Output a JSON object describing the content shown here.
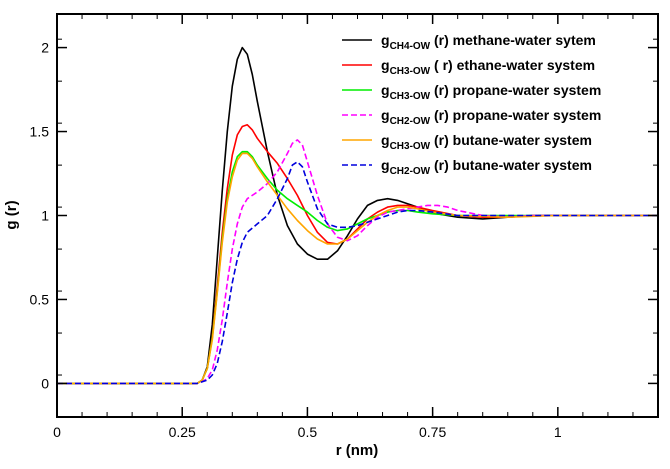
{
  "chart_data": {
    "type": "line",
    "xlabel": "r (nm)",
    "ylabel": "g (r)",
    "xlim": [
      0,
      1.2
    ],
    "ylim": [
      -0.2,
      2.2
    ],
    "x_ticks": [
      {
        "value": 0,
        "label": "0"
      },
      {
        "value": 0.25,
        "label": "0.25"
      },
      {
        "value": 0.5,
        "label": "0.5"
      },
      {
        "value": 0.75,
        "label": "0.75"
      },
      {
        "value": 1,
        "label": "1"
      }
    ],
    "y_ticks": [
      {
        "value": 0,
        "label": "0"
      },
      {
        "value": 0.5,
        "label": "0.5"
      },
      {
        "value": 1,
        "label": "1"
      },
      {
        "value": 1.5,
        "label": "1.5"
      },
      {
        "value": 2,
        "label": "2"
      }
    ],
    "x_minor_step": 0.05,
    "y_minor_step": 0.25,
    "grid": false,
    "legend_position": "top-right",
    "series": [
      {
        "name_main": "g",
        "name_sub": "CH4-OW",
        "name_rest": " (r)  methane-water sytem",
        "color": "#000000",
        "dash": "solid",
        "points": [
          [
            0,
            0
          ],
          [
            0.28,
            0
          ],
          [
            0.29,
            0.02
          ],
          [
            0.3,
            0.1
          ],
          [
            0.31,
            0.35
          ],
          [
            0.32,
            0.75
          ],
          [
            0.33,
            1.15
          ],
          [
            0.34,
            1.5
          ],
          [
            0.35,
            1.77
          ],
          [
            0.36,
            1.93
          ],
          [
            0.37,
            2.0
          ],
          [
            0.38,
            1.96
          ],
          [
            0.39,
            1.84
          ],
          [
            0.4,
            1.68
          ],
          [
            0.42,
            1.38
          ],
          [
            0.44,
            1.12
          ],
          [
            0.46,
            0.94
          ],
          [
            0.48,
            0.83
          ],
          [
            0.5,
            0.77
          ],
          [
            0.52,
            0.74
          ],
          [
            0.54,
            0.74
          ],
          [
            0.56,
            0.79
          ],
          [
            0.58,
            0.88
          ],
          [
            0.6,
            0.98
          ],
          [
            0.62,
            1.06
          ],
          [
            0.64,
            1.09
          ],
          [
            0.66,
            1.1
          ],
          [
            0.68,
            1.09
          ],
          [
            0.7,
            1.07
          ],
          [
            0.72,
            1.05
          ],
          [
            0.74,
            1.03
          ],
          [
            0.76,
            1.01
          ],
          [
            0.8,
            0.99
          ],
          [
            0.85,
            0.98
          ],
          [
            0.9,
            0.99
          ],
          [
            0.95,
            1.0
          ],
          [
            1.0,
            1.0
          ],
          [
            1.1,
            1.0
          ],
          [
            1.2,
            1.0
          ]
        ]
      },
      {
        "name_main": "g",
        "name_sub": "CH3-OW",
        "name_rest": " ( r) ethane-water system",
        "color": "#ff0000",
        "dash": "solid",
        "points": [
          [
            0,
            0
          ],
          [
            0.28,
            0
          ],
          [
            0.29,
            0.02
          ],
          [
            0.3,
            0.09
          ],
          [
            0.31,
            0.28
          ],
          [
            0.32,
            0.58
          ],
          [
            0.33,
            0.9
          ],
          [
            0.34,
            1.16
          ],
          [
            0.35,
            1.36
          ],
          [
            0.36,
            1.48
          ],
          [
            0.37,
            1.53
          ],
          [
            0.38,
            1.54
          ],
          [
            0.39,
            1.51
          ],
          [
            0.4,
            1.46
          ],
          [
            0.42,
            1.38
          ],
          [
            0.44,
            1.31
          ],
          [
            0.46,
            1.22
          ],
          [
            0.48,
            1.12
          ],
          [
            0.5,
            1.0
          ],
          [
            0.52,
            0.9
          ],
          [
            0.54,
            0.84
          ],
          [
            0.56,
            0.83
          ],
          [
            0.58,
            0.86
          ],
          [
            0.6,
            0.92
          ],
          [
            0.62,
            0.98
          ],
          [
            0.64,
            1.02
          ],
          [
            0.66,
            1.05
          ],
          [
            0.68,
            1.06
          ],
          [
            0.7,
            1.06
          ],
          [
            0.72,
            1.05
          ],
          [
            0.75,
            1.03
          ],
          [
            0.8,
            1.0
          ],
          [
            0.85,
            0.99
          ],
          [
            0.9,
            0.99
          ],
          [
            0.95,
            1.0
          ],
          [
            1.0,
            1.0
          ],
          [
            1.1,
            1.0
          ],
          [
            1.2,
            1.0
          ]
        ]
      },
      {
        "name_main": "g",
        "name_sub": "CH3-OW",
        "name_rest": " (r) propane-water system",
        "color": "#00ee00",
        "dash": "solid",
        "points": [
          [
            0,
            0
          ],
          [
            0.28,
            0
          ],
          [
            0.29,
            0.02
          ],
          [
            0.3,
            0.09
          ],
          [
            0.31,
            0.27
          ],
          [
            0.32,
            0.55
          ],
          [
            0.33,
            0.86
          ],
          [
            0.34,
            1.1
          ],
          [
            0.35,
            1.26
          ],
          [
            0.36,
            1.35
          ],
          [
            0.37,
            1.38
          ],
          [
            0.38,
            1.38
          ],
          [
            0.39,
            1.35
          ],
          [
            0.4,
            1.3
          ],
          [
            0.42,
            1.22
          ],
          [
            0.44,
            1.15
          ],
          [
            0.46,
            1.1
          ],
          [
            0.48,
            1.06
          ],
          [
            0.5,
            1.02
          ],
          [
            0.52,
            0.97
          ],
          [
            0.54,
            0.93
          ],
          [
            0.56,
            0.91
          ],
          [
            0.58,
            0.92
          ],
          [
            0.6,
            0.95
          ],
          [
            0.62,
            0.98
          ],
          [
            0.64,
            1.0
          ],
          [
            0.66,
            1.02
          ],
          [
            0.68,
            1.03
          ],
          [
            0.7,
            1.03
          ],
          [
            0.72,
            1.02
          ],
          [
            0.75,
            1.01
          ],
          [
            0.8,
            1.0
          ],
          [
            0.9,
            1.0
          ],
          [
            1.0,
            1.0
          ],
          [
            1.1,
            1.0
          ],
          [
            1.2,
            1.0
          ]
        ]
      },
      {
        "name_main": "g",
        "name_sub": "CH2-OW",
        "name_rest": " (r) propane-water system",
        "color": "#ff00ff",
        "dash": "dashed",
        "points": [
          [
            0,
            0
          ],
          [
            0.28,
            0
          ],
          [
            0.29,
            0.01
          ],
          [
            0.3,
            0.03
          ],
          [
            0.31,
            0.08
          ],
          [
            0.32,
            0.2
          ],
          [
            0.33,
            0.38
          ],
          [
            0.34,
            0.6
          ],
          [
            0.35,
            0.8
          ],
          [
            0.36,
            0.95
          ],
          [
            0.37,
            1.05
          ],
          [
            0.38,
            1.1
          ],
          [
            0.4,
            1.14
          ],
          [
            0.42,
            1.19
          ],
          [
            0.44,
            1.26
          ],
          [
            0.46,
            1.37
          ],
          [
            0.47,
            1.43
          ],
          [
            0.48,
            1.45
          ],
          [
            0.49,
            1.42
          ],
          [
            0.5,
            1.32
          ],
          [
            0.52,
            1.12
          ],
          [
            0.54,
            0.95
          ],
          [
            0.56,
            0.87
          ],
          [
            0.58,
            0.85
          ],
          [
            0.6,
            0.88
          ],
          [
            0.62,
            0.94
          ],
          [
            0.64,
            0.99
          ],
          [
            0.66,
            1.02
          ],
          [
            0.68,
            1.03
          ],
          [
            0.7,
            1.04
          ],
          [
            0.72,
            1.05
          ],
          [
            0.74,
            1.06
          ],
          [
            0.76,
            1.06
          ],
          [
            0.78,
            1.05
          ],
          [
            0.8,
            1.03
          ],
          [
            0.85,
            1.0
          ],
          [
            0.9,
            0.99
          ],
          [
            0.95,
            1.0
          ],
          [
            1.0,
            1.0
          ],
          [
            1.1,
            1.0
          ],
          [
            1.2,
            1.0
          ]
        ]
      },
      {
        "name_main": "g",
        "name_sub": "CH3-OW",
        "name_rest": " (r)  butane-water system",
        "color": "#ffa500",
        "dash": "solid",
        "points": [
          [
            0,
            0
          ],
          [
            0.28,
            0
          ],
          [
            0.29,
            0.02
          ],
          [
            0.3,
            0.09
          ],
          [
            0.31,
            0.26
          ],
          [
            0.32,
            0.54
          ],
          [
            0.33,
            0.84
          ],
          [
            0.34,
            1.08
          ],
          [
            0.35,
            1.23
          ],
          [
            0.36,
            1.33
          ],
          [
            0.37,
            1.37
          ],
          [
            0.38,
            1.37
          ],
          [
            0.39,
            1.34
          ],
          [
            0.4,
            1.29
          ],
          [
            0.42,
            1.2
          ],
          [
            0.44,
            1.12
          ],
          [
            0.46,
            1.04
          ],
          [
            0.48,
            0.97
          ],
          [
            0.5,
            0.91
          ],
          [
            0.52,
            0.86
          ],
          [
            0.54,
            0.83
          ],
          [
            0.56,
            0.83
          ],
          [
            0.58,
            0.86
          ],
          [
            0.6,
            0.91
          ],
          [
            0.62,
            0.96
          ],
          [
            0.64,
            1.0
          ],
          [
            0.66,
            1.03
          ],
          [
            0.68,
            1.05
          ],
          [
            0.7,
            1.05
          ],
          [
            0.72,
            1.04
          ],
          [
            0.75,
            1.02
          ],
          [
            0.8,
            1.0
          ],
          [
            0.9,
            0.99
          ],
          [
            1.0,
            1.0
          ],
          [
            1.1,
            1.0
          ],
          [
            1.2,
            1.0
          ]
        ]
      },
      {
        "name_main": "g",
        "name_sub": "CH2-OW",
        "name_rest": " (r)  butane-water system",
        "color": "#0000dd",
        "dash": "dashed",
        "points": [
          [
            0,
            0
          ],
          [
            0.28,
            0
          ],
          [
            0.29,
            0.01
          ],
          [
            0.3,
            0.02
          ],
          [
            0.31,
            0.05
          ],
          [
            0.32,
            0.12
          ],
          [
            0.33,
            0.25
          ],
          [
            0.34,
            0.42
          ],
          [
            0.35,
            0.6
          ],
          [
            0.36,
            0.74
          ],
          [
            0.37,
            0.84
          ],
          [
            0.38,
            0.9
          ],
          [
            0.4,
            0.95
          ],
          [
            0.42,
            1.0
          ],
          [
            0.44,
            1.1
          ],
          [
            0.46,
            1.22
          ],
          [
            0.47,
            1.3
          ],
          [
            0.48,
            1.32
          ],
          [
            0.49,
            1.29
          ],
          [
            0.5,
            1.2
          ],
          [
            0.52,
            1.04
          ],
          [
            0.54,
            0.95
          ],
          [
            0.56,
            0.93
          ],
          [
            0.58,
            0.93
          ],
          [
            0.6,
            0.94
          ],
          [
            0.62,
            0.96
          ],
          [
            0.64,
            0.98
          ],
          [
            0.66,
            1.0
          ],
          [
            0.68,
            1.02
          ],
          [
            0.7,
            1.03
          ],
          [
            0.72,
            1.03
          ],
          [
            0.75,
            1.02
          ],
          [
            0.8,
            1.0
          ],
          [
            0.9,
            1.0
          ],
          [
            1.0,
            1.0
          ],
          [
            1.1,
            1.0
          ],
          [
            1.2,
            1.0
          ]
        ]
      }
    ]
  }
}
